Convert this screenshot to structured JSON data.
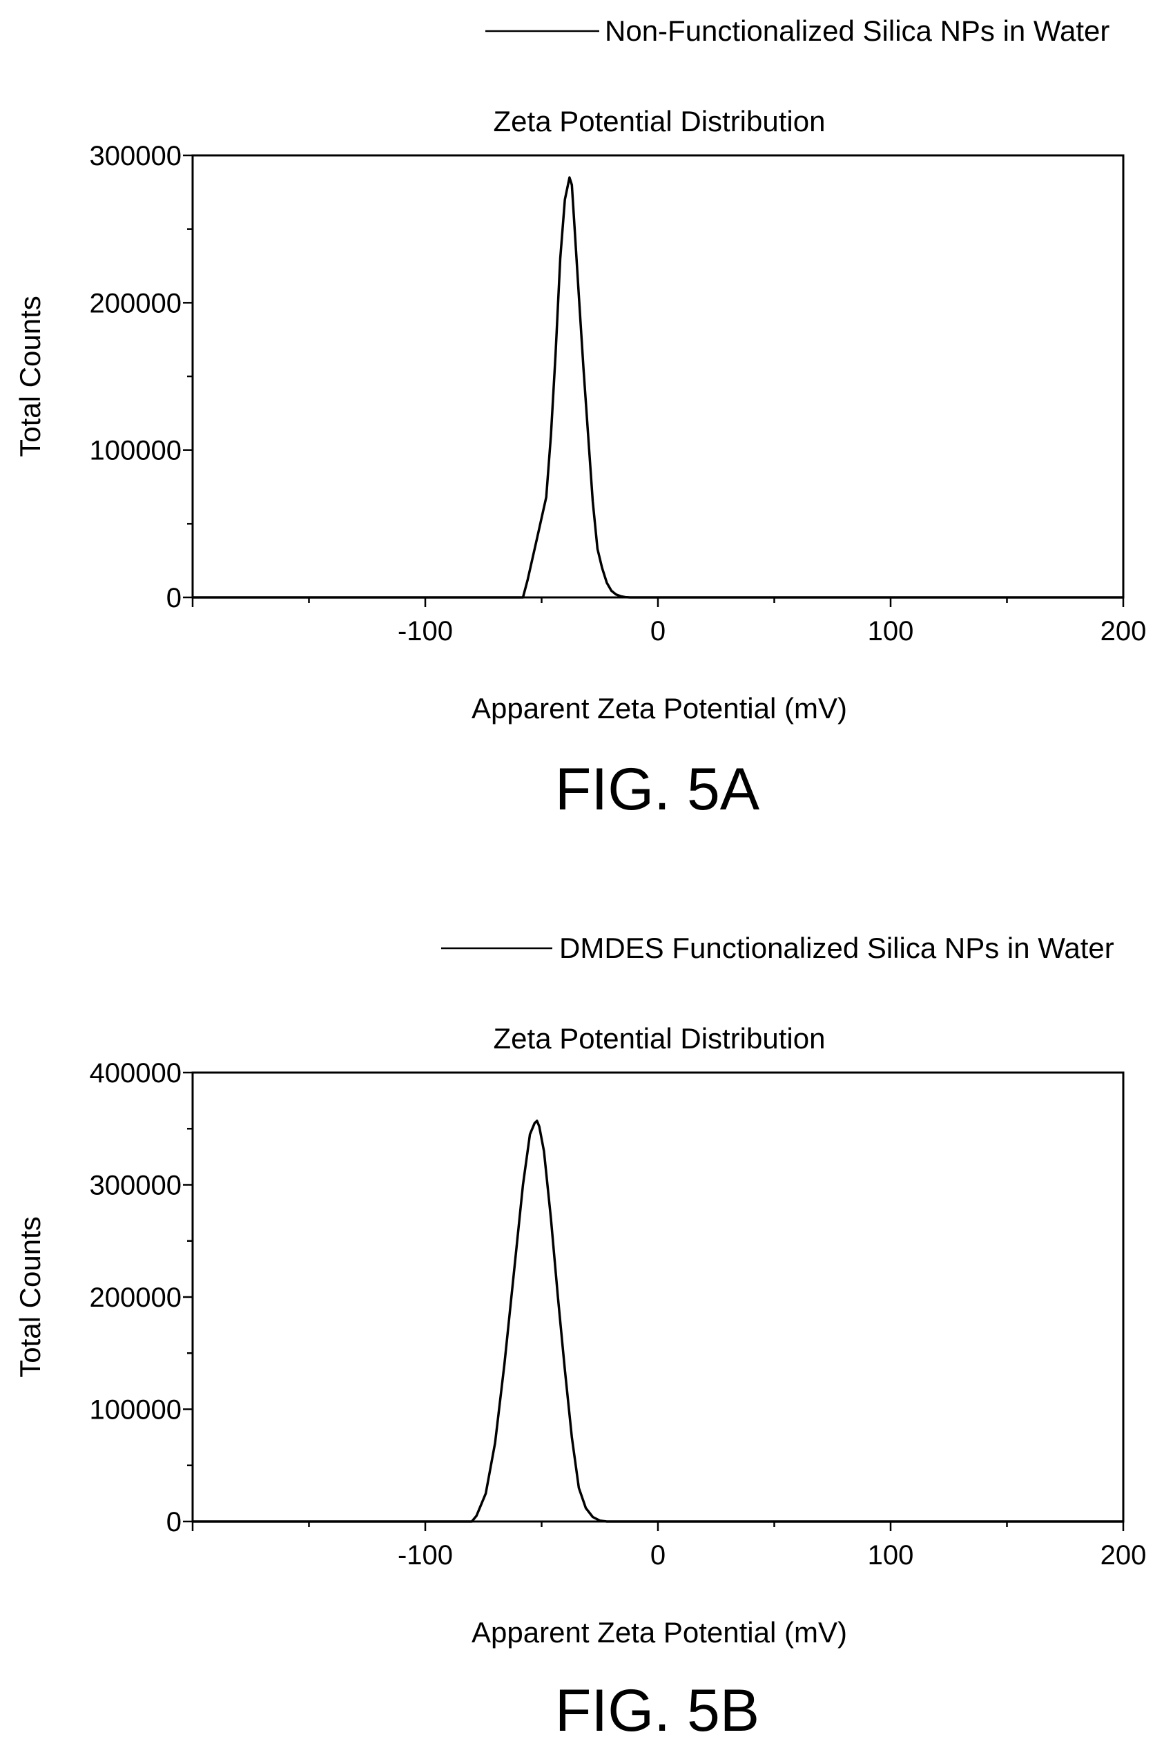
{
  "chart_data": [
    {
      "type": "line",
      "figure_label": "FIG. 5A",
      "title": "Zeta Potential Distribution",
      "xlabel": "Apparent Zeta Potential (mV)",
      "ylabel": "Total Counts",
      "xlim": [
        -200,
        200
      ],
      "ylim": [
        0,
        300000
      ],
      "x_ticks": [
        -100,
        0,
        100,
        200
      ],
      "x_tick_labels": [
        "-100",
        "0",
        "100",
        "200"
      ],
      "y_ticks": [
        0,
        100000,
        200000,
        300000
      ],
      "y_tick_labels": [
        "0",
        "100000",
        "200000",
        "300000"
      ],
      "grid": false,
      "legend_position": "top-right",
      "series": [
        {
          "name": "Non-Functionalized Silica NPs in Water",
          "x": [
            -200,
            -58,
            -56,
            -52,
            -48,
            -46,
            -44,
            -42,
            -40,
            -38,
            -37,
            -36,
            -34,
            -32,
            -30,
            -28,
            -26,
            -24,
            -22,
            -20,
            -18,
            -16,
            -14,
            -12,
            200
          ],
          "y": [
            0,
            0,
            12000,
            40000,
            68000,
            110000,
            165000,
            230000,
            270000,
            285000,
            280000,
            255000,
            205000,
            155000,
            110000,
            65000,
            33000,
            20000,
            10000,
            4500,
            2000,
            800,
            200,
            0,
            0
          ]
        }
      ]
    },
    {
      "type": "line",
      "figure_label": "FIG. 5B",
      "title": "Zeta Potential Distribution",
      "xlabel": "Apparent Zeta Potential (mV)",
      "ylabel": "Total Counts",
      "xlim": [
        -200,
        200
      ],
      "ylim": [
        0,
        400000
      ],
      "x_ticks": [
        -100,
        0,
        100,
        200
      ],
      "x_tick_labels": [
        "-100",
        "0",
        "100",
        "200"
      ],
      "y_ticks": [
        0,
        100000,
        200000,
        300000,
        400000
      ],
      "y_tick_labels": [
        "0",
        "100000",
        "200000",
        "300000",
        "400000"
      ],
      "grid": false,
      "legend_position": "top-right",
      "series": [
        {
          "name": "DMDES Functionalized Silica NPs in Water",
          "x": [
            -200,
            -80,
            -78,
            -74,
            -70,
            -66,
            -62,
            -58,
            -55,
            -53,
            -52,
            -51,
            -49,
            -46,
            -43,
            -40,
            -37,
            -34,
            -31,
            -28,
            -25,
            -22,
            200
          ],
          "y": [
            0,
            0,
            5000,
            25000,
            70000,
            140000,
            220000,
            300000,
            345000,
            355000,
            357000,
            352000,
            330000,
            270000,
            200000,
            135000,
            75000,
            30000,
            12000,
            4000,
            800,
            0,
            0
          ]
        }
      ]
    }
  ]
}
